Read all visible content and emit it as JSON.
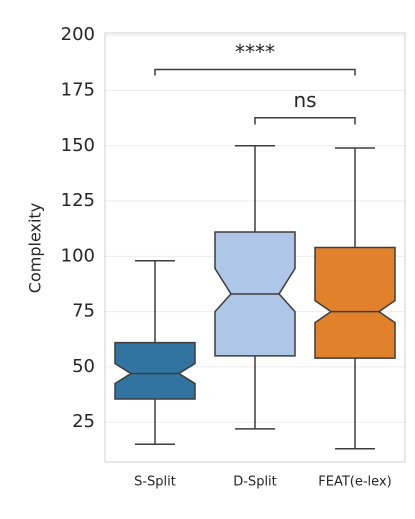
{
  "chart_data": {
    "type": "box",
    "ylabel": "Complexity",
    "categories": [
      "S-Split",
      "D-Split",
      "FEAT(e-lex)"
    ],
    "colors": [
      "#3274a1",
      "#aec7e8",
      "#e1812c"
    ],
    "whislo": [
      15,
      22,
      13
    ],
    "q1": [
      35.5,
      55,
      54
    ],
    "median": [
      47,
      83,
      75
    ],
    "q3": [
      61,
      111,
      104
    ],
    "whishi": [
      98,
      150,
      149
    ],
    "notch_lo": [
      42.5,
      75,
      70
    ],
    "notch_hi": [
      51.5,
      94.5,
      80
    ],
    "ylim": [
      7,
      201
    ],
    "yticks": [
      25,
      50,
      75,
      100,
      125,
      150,
      175,
      200
    ],
    "grid": true,
    "annotations": [
      {
        "text": "****",
        "from": 0,
        "to": 2,
        "y": 184.5,
        "drop": 181.8
      },
      {
        "text": "ns",
        "from": 1,
        "to": 2,
        "y": 162.7,
        "drop": 159.6
      }
    ]
  }
}
